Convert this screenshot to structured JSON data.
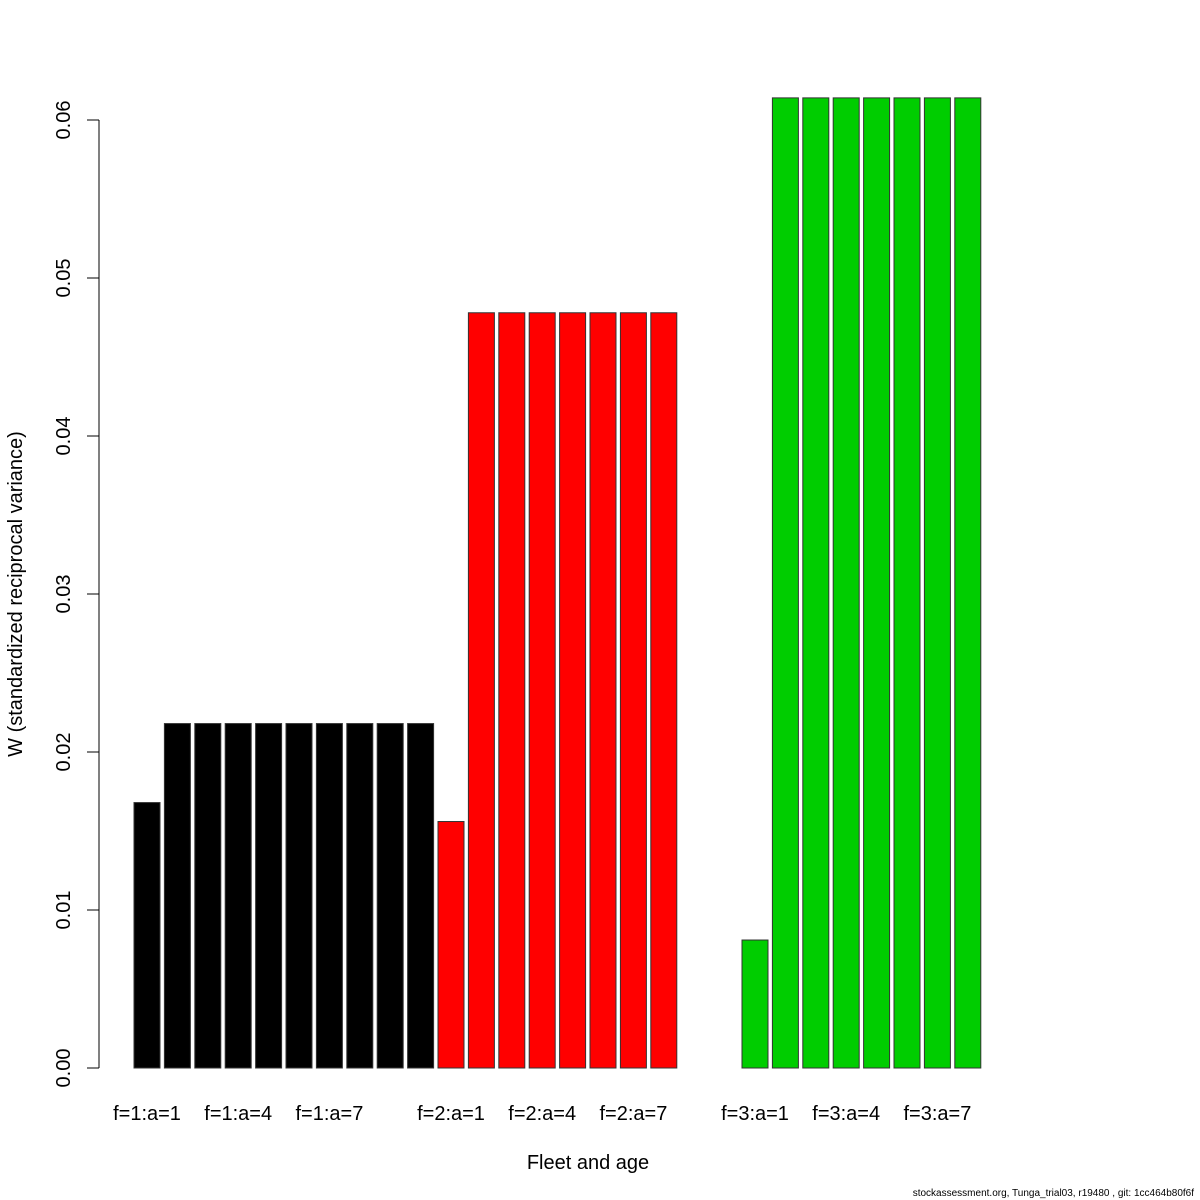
{
  "chart_data": {
    "type": "bar",
    "title": "",
    "xlabel": "Fleet and age",
    "ylabel": "W (standardized reciprocal variance)",
    "ylim": [
      0,
      0.06
    ],
    "yticks": [
      "0.00",
      "0.01",
      "0.02",
      "0.03",
      "0.04",
      "0.05",
      "0.06"
    ],
    "ytick_values": [
      0,
      0.01,
      0.02,
      0.03,
      0.04,
      0.05,
      0.06
    ],
    "grid": false,
    "fleet_colors": {
      "1": "#000000",
      "2": "#ff0000",
      "3": "#00cd00"
    },
    "bars": [
      {
        "fleet": 1,
        "age": 1,
        "value": 0.0168
      },
      {
        "fleet": 1,
        "age": 2,
        "value": 0.0218
      },
      {
        "fleet": 1,
        "age": 3,
        "value": 0.0218
      },
      {
        "fleet": 1,
        "age": 4,
        "value": 0.0218
      },
      {
        "fleet": 1,
        "age": 5,
        "value": 0.0218
      },
      {
        "fleet": 1,
        "age": 6,
        "value": 0.0218
      },
      {
        "fleet": 1,
        "age": 7,
        "value": 0.0218
      },
      {
        "fleet": 1,
        "age": 8,
        "value": 0.0218
      },
      {
        "fleet": 1,
        "age": 9,
        "value": 0.0218
      },
      {
        "fleet": 1,
        "age": 10,
        "value": 0.0218
      },
      {
        "fleet": 2,
        "age": 1,
        "value": 0.0156
      },
      {
        "fleet": 2,
        "age": 2,
        "value": 0.0478
      },
      {
        "fleet": 2,
        "age": 3,
        "value": 0.0478
      },
      {
        "fleet": 2,
        "age": 4,
        "value": 0.0478
      },
      {
        "fleet": 2,
        "age": 5,
        "value": 0.0478
      },
      {
        "fleet": 2,
        "age": 6,
        "value": 0.0478
      },
      {
        "fleet": 2,
        "age": 7,
        "value": 0.0478
      },
      {
        "fleet": 2,
        "age": 8,
        "value": 0.0478
      },
      {
        "fleet": 2,
        "age": 9,
        "value": 0
      },
      {
        "fleet": 2,
        "age": 10,
        "value": 0
      },
      {
        "fleet": 3,
        "age": 1,
        "value": 0.0081
      },
      {
        "fleet": 3,
        "age": 2,
        "value": 0.0614
      },
      {
        "fleet": 3,
        "age": 3,
        "value": 0.0614
      },
      {
        "fleet": 3,
        "age": 4,
        "value": 0.0614
      },
      {
        "fleet": 3,
        "age": 5,
        "value": 0.0614
      },
      {
        "fleet": 3,
        "age": 6,
        "value": 0.0614
      },
      {
        "fleet": 3,
        "age": 7,
        "value": 0.0614
      },
      {
        "fleet": 3,
        "age": 8,
        "value": 0.0614
      }
    ],
    "xtick_labels": [
      {
        "slot": 0,
        "label": "f=1:a=1"
      },
      {
        "slot": 3,
        "label": "f=1:a=4"
      },
      {
        "slot": 6,
        "label": "f=1:a=7"
      },
      {
        "slot": 10,
        "label": "f=2:a=1"
      },
      {
        "slot": 13,
        "label": "f=2:a=4"
      },
      {
        "slot": 16,
        "label": "f=2:a=7"
      },
      {
        "slot": 20,
        "label": "f=3:a=1"
      },
      {
        "slot": 23,
        "label": "f=3:a=4"
      },
      {
        "slot": 26,
        "label": "f=3:a=7"
      }
    ]
  },
  "footer": "stockassessment.org, Tunga_trial03, r19480 , git: 1cc464b80f6f"
}
